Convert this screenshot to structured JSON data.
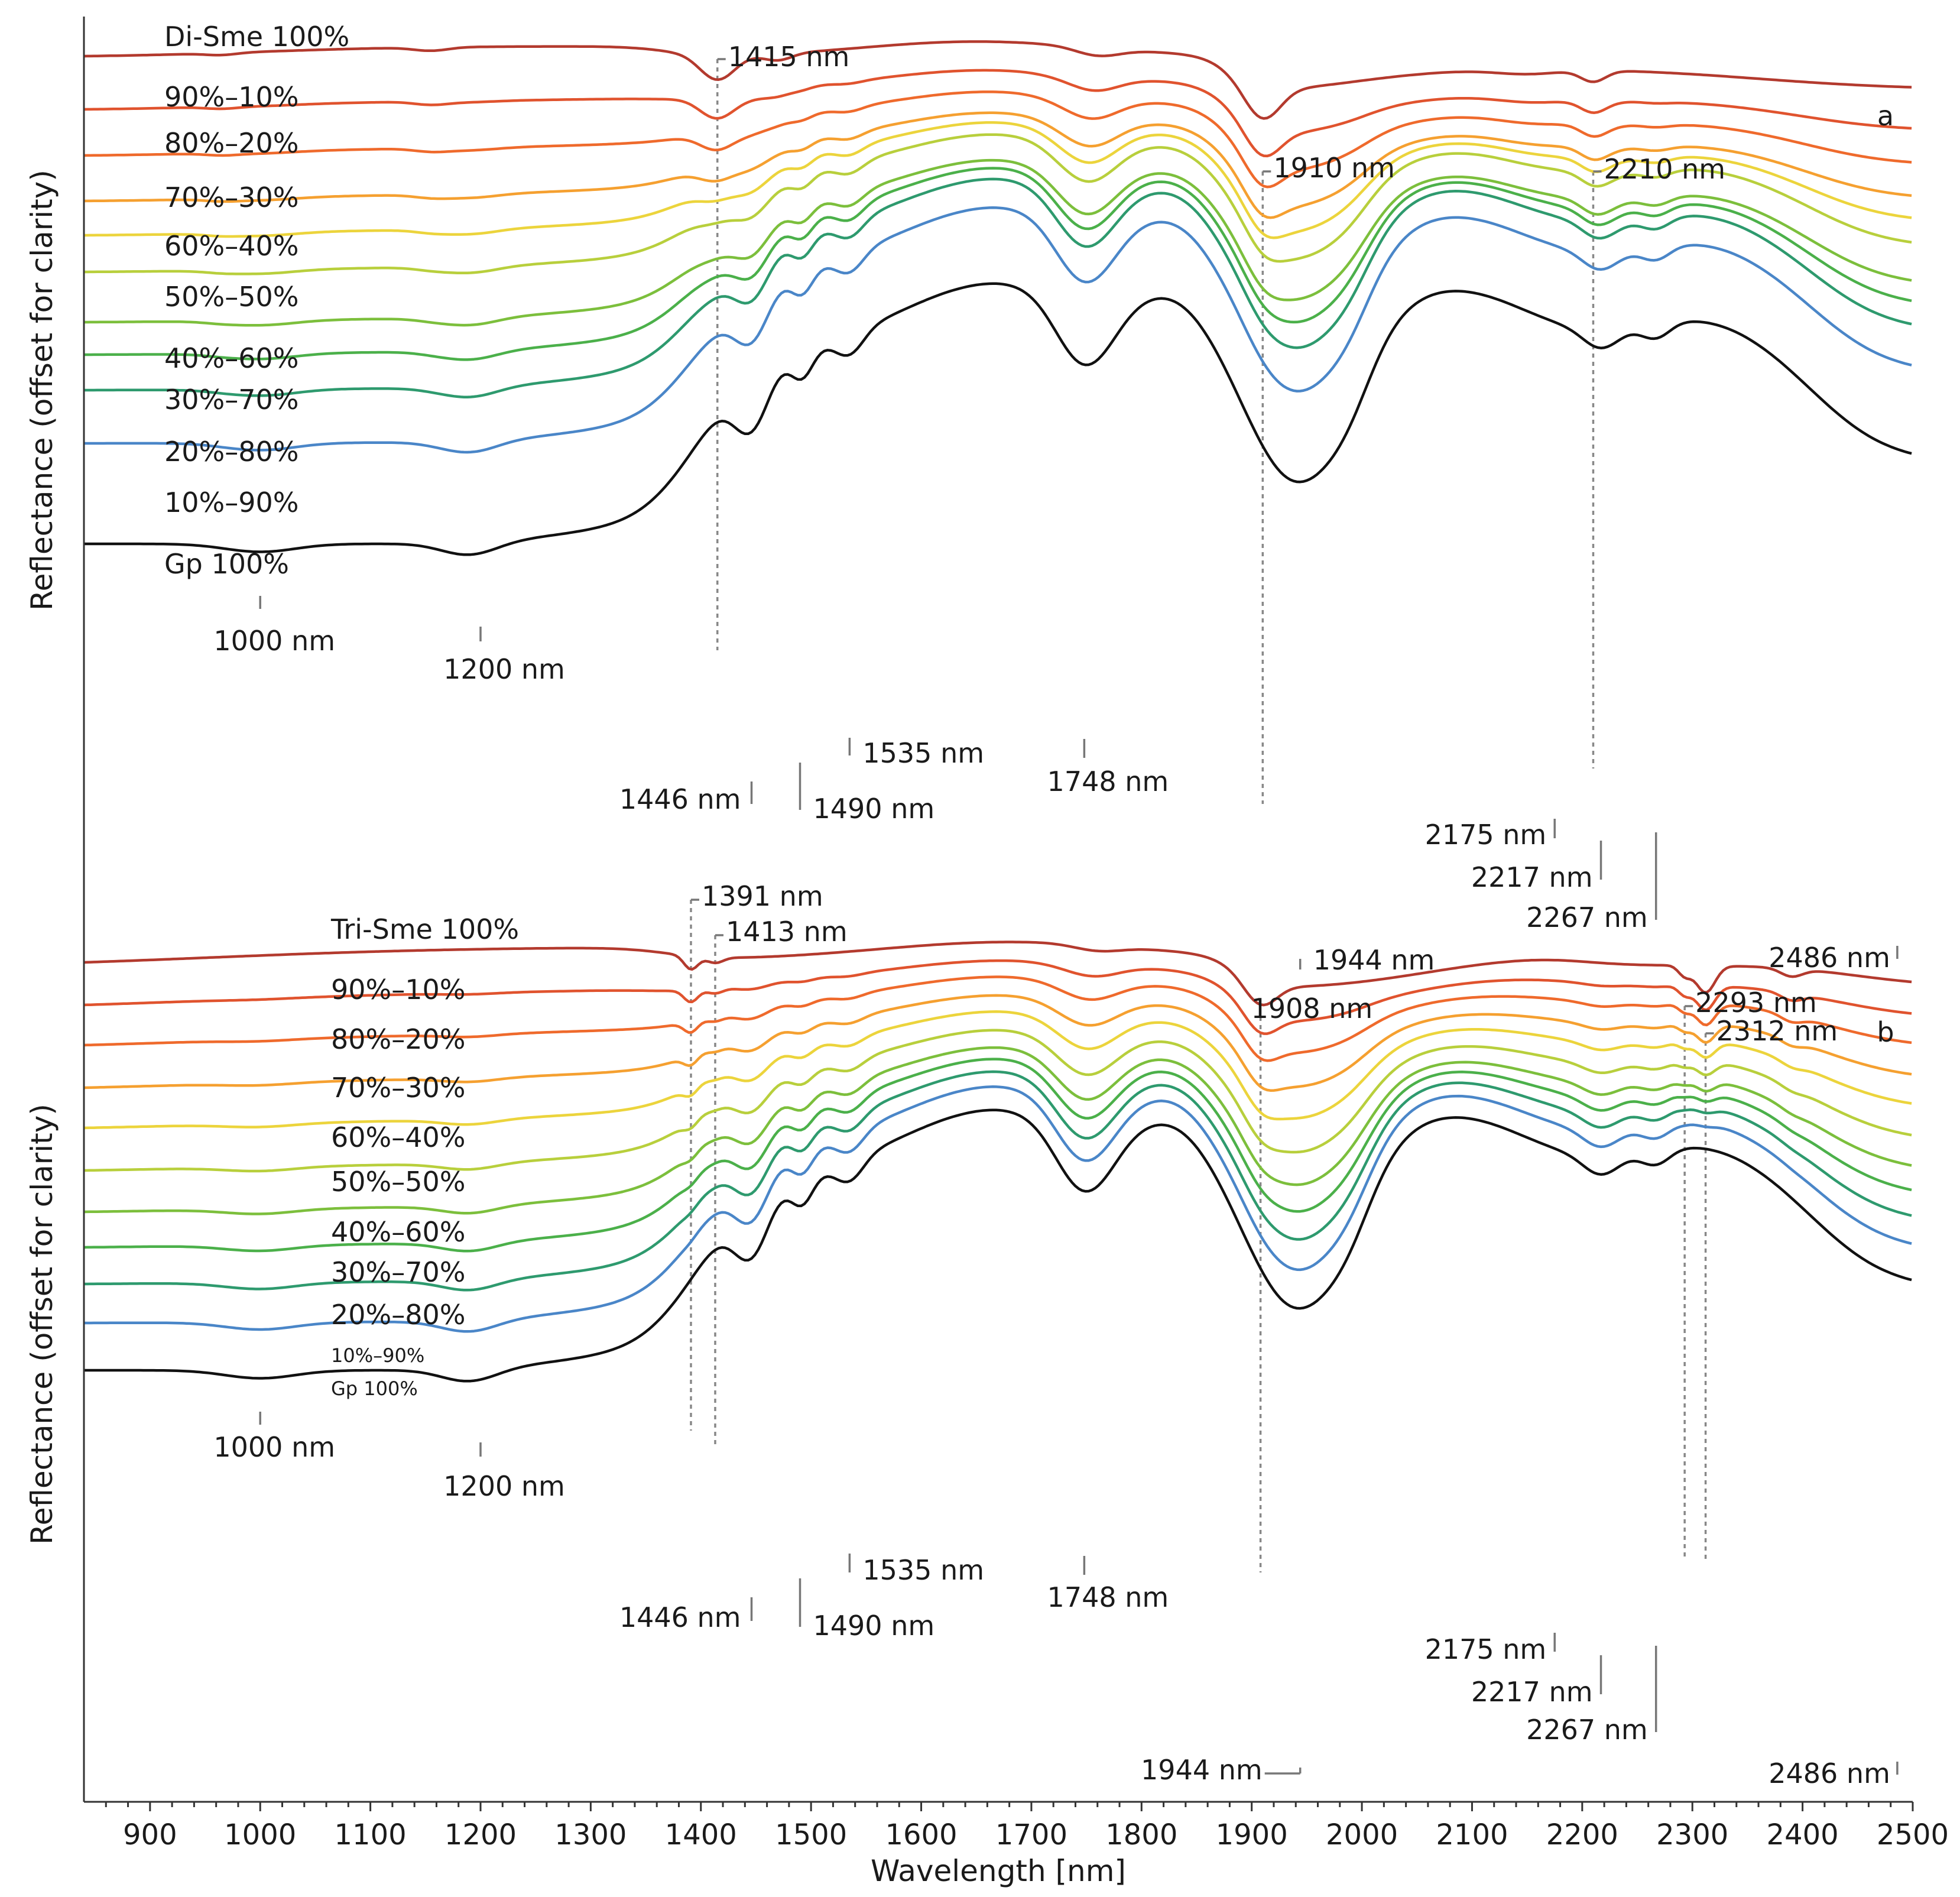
{
  "chart_data": {
    "type": "line",
    "xlabel": "Wavelength [nm]",
    "xlim": [
      840,
      2500
    ],
    "x_ticks": [
      900,
      1000,
      1100,
      1200,
      1300,
      1400,
      1500,
      1600,
      1700,
      1800,
      1900,
      2000,
      2100,
      2200,
      2300,
      2400,
      2500
    ],
    "x_tick_labels": [
      "900",
      "1000",
      "1100",
      "1200",
      "1300",
      "1400",
      "1500",
      "1600",
      "1700",
      "1800",
      "1900",
      "2000",
      "2100",
      "2200",
      "2300",
      "2400",
      "2500"
    ],
    "colors": [
      "#b33a2e",
      "#e0532e",
      "#ef6a2c",
      "#f5a030",
      "#ecd43c",
      "#b8cf3c",
      "#7cbf3c",
      "#4bb04a",
      "#2e9a6e",
      "#4a86c8",
      "#111111"
    ],
    "panels": [
      {
        "id": "a",
        "panel_label": "a",
        "ylabel": "Reflectance (offset for clarity)",
        "series_names": [
          "Di-Sme 100%",
          "90%–10%",
          "80%–20%",
          "70%–30%",
          "60%–40%",
          "50%–50%",
          "40%–60%",
          "30%–70%",
          "20%–80%",
          "10%–90%",
          "Gp 100%"
        ],
        "annotations": [
          "1415 nm",
          "1910 nm",
          "2210 nm",
          "1000 nm",
          "1200 nm",
          "1446 nm",
          "1490 nm",
          "1535 nm",
          "1748 nm",
          "1944 nm",
          "2175 nm",
          "2217 nm",
          "2267 nm",
          "2486 nm"
        ]
      },
      {
        "id": "b",
        "panel_label": "b",
        "ylabel": "Reflectance (offset for clarity)",
        "series_names": [
          "Tri-Sme 100%",
          "90%–10%",
          "80%–20%",
          "70%–30%",
          "60%–40%",
          "50%–50%",
          "40%–60%",
          "30%–70%",
          "20%–80%",
          "10%–90%",
          "Gp 100%"
        ],
        "annotations": [
          "1391 nm",
          "1413 nm",
          "1908 nm",
          "2293 nm",
          "2312 nm",
          "1000 nm",
          "1200 nm",
          "1446 nm",
          "1490 nm",
          "1535 nm",
          "1748 nm",
          "1944 nm",
          "2175 nm",
          "2217 nm",
          "2267 nm",
          "2486 nm"
        ]
      }
    ]
  }
}
